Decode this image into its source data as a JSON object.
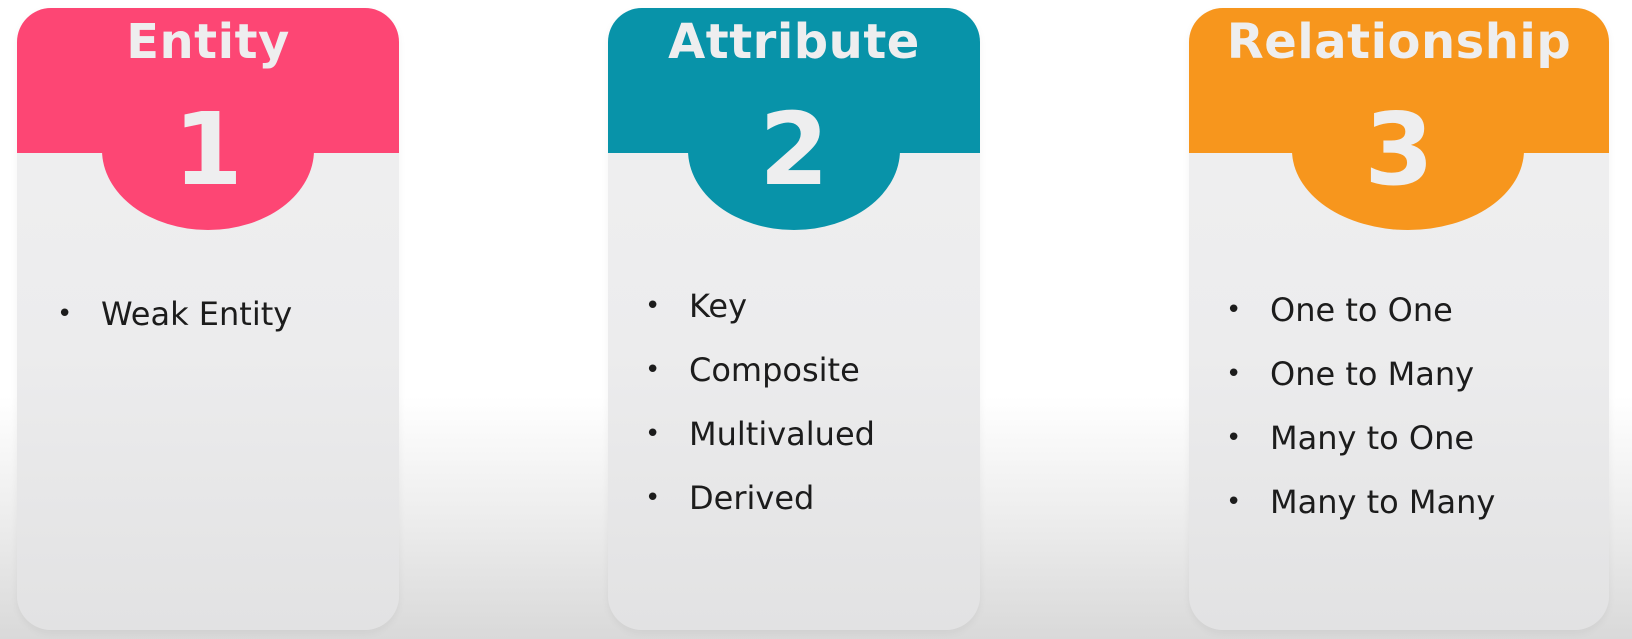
{
  "cards": [
    {
      "title": "Entity",
      "number": "1",
      "color": "#fd4674",
      "items": [
        "Weak Entity"
      ]
    },
    {
      "title": "Attribute",
      "number": "2",
      "color": "#0893a9",
      "items": [
        "Key",
        "Composite",
        "Multivalued",
        "Derived"
      ]
    },
    {
      "title": "Relationship",
      "number": "3",
      "color": "#f7961d",
      "items": [
        "One to One",
        "One to Many",
        "Many to One",
        "Many to Many"
      ]
    }
  ],
  "bullet_symbol": "•"
}
